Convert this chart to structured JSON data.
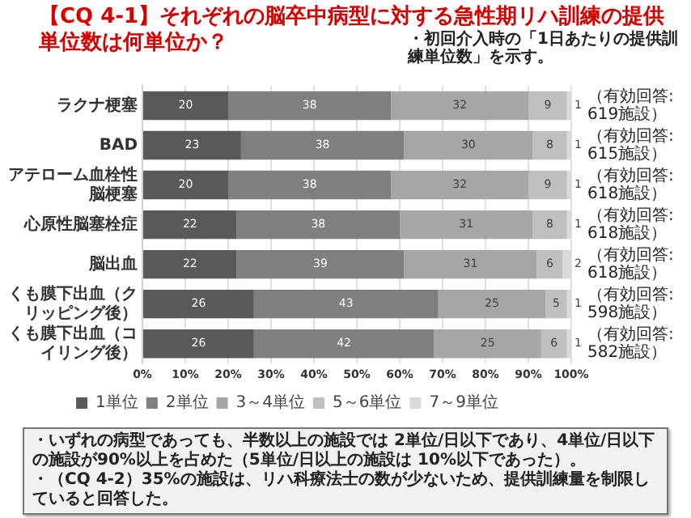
{
  "chart_data": {
    "type": "bar",
    "orientation": "horizontal",
    "stacked": true,
    "title": "【CQ 4-1】それぞれの脳卒中病型に対する急性期リハ訓練の提供単位数は何単位か？",
    "subtitle": "・初回介入時の「1日あたりの提供訓練単位数」を示す。",
    "categories": [
      "ラクナ梗塞",
      "BAD",
      "アテローム血栓性脳梗塞",
      "心原性脳塞栓症",
      "脳出血",
      "くも膜下出血（クリッピング後）",
      "くも膜下出血（コイリング後）"
    ],
    "series": [
      {
        "name": "1単位",
        "color": "#595959",
        "values": [
          20,
          23,
          20,
          22,
          22,
          26,
          26
        ]
      },
      {
        "name": "2単位",
        "color": "#7f7f7f",
        "values": [
          38,
          38,
          38,
          38,
          39,
          43,
          42
        ]
      },
      {
        "name": "3～4単位",
        "color": "#a6a6a6",
        "values": [
          32,
          30,
          32,
          31,
          31,
          25,
          25
        ]
      },
      {
        "name": "5～6単位",
        "color": "#bfbfbf",
        "values": [
          9,
          8,
          9,
          8,
          6,
          5,
          6
        ]
      },
      {
        "name": "7～9単位",
        "color": "#d9d9d9",
        "values": [
          1,
          1,
          1,
          1,
          2,
          1,
          1
        ]
      }
    ],
    "xlim": [
      0,
      100
    ],
    "xticks": [
      {
        "value": 0,
        "label": "0%"
      },
      {
        "value": 10,
        "label": "10%"
      },
      {
        "value": 20,
        "label": "20%"
      },
      {
        "value": 30,
        "label": "30%"
      },
      {
        "value": 40,
        "label": "40%"
      },
      {
        "value": 50,
        "label": "50%"
      },
      {
        "value": 60,
        "label": "60%"
      },
      {
        "value": 70,
        "label": "70%"
      },
      {
        "value": 80,
        "label": "80%"
      },
      {
        "value": 90,
        "label": "90%"
      },
      {
        "value": 100,
        "label": "100%"
      }
    ],
    "grid": "x",
    "legend": "bottom",
    "data_labels": true,
    "annotations": [
      "（有効回答: 619施設）",
      "（有効回答: 615施設）",
      "（有効回答: 618施設）",
      "（有効回答: 618施設）",
      "（有効回答: 618施設）",
      "（有効回答: 598施設）",
      "（有効回答: 582施設）",
      "・いずれの病型であっても、半数以上の施設では 2単位/日以下であり、4単位/日以下の施設が90%以上を占めた（5単位/日以上の施設は 10%以下であった）。",
      "・（CQ 4-2）35%の施設は、リハ科療法士の数が少ないため、提供訓練量を制限していると回答した。"
    ]
  }
}
